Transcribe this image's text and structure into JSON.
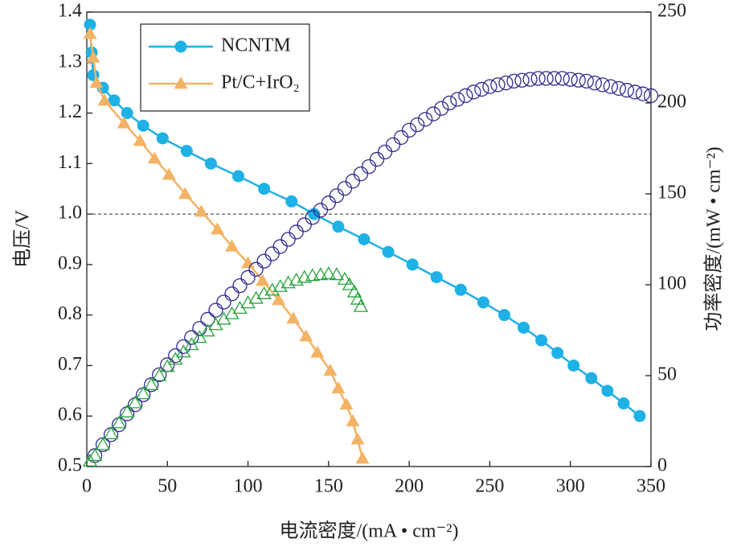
{
  "chart_data": {
    "type": "line",
    "xlabel": "电流密度/(mA • cm⁻²)",
    "ylabel": "电压/V",
    "y2label": "功率密度/(mW • cm⁻²)",
    "xlim": [
      0,
      350
    ],
    "xticks": [
      0,
      50,
      100,
      150,
      200,
      250,
      300,
      350
    ],
    "ylim": [
      0.5,
      1.4
    ],
    "yticks": [
      0.5,
      0.6,
      0.7,
      0.8,
      0.9,
      {
        "value": 1.0,
        "label": "1.0"
      },
      1.1,
      1.2,
      1.3,
      1.4
    ],
    "y2lim": [
      0,
      250
    ],
    "y2ticks": [
      0,
      50,
      100,
      150,
      200,
      250
    ],
    "hline": 1.0,
    "legend": "upper left",
    "series": [
      {
        "name": "NCNTM",
        "color": "#1eb1e6",
        "marker": "circle",
        "filled": true,
        "line": true,
        "x": [
          2,
          3,
          4,
          10,
          17,
          25,
          35,
          47,
          62,
          77,
          94,
          110,
          127,
          141,
          156,
          172,
          187,
          202,
          217,
          232,
          246,
          259,
          271,
          282,
          292,
          302,
          313,
          323,
          333,
          343
        ],
        "values": [
          1.375,
          1.32,
          1.275,
          1.25,
          1.225,
          1.2,
          1.175,
          1.15,
          1.125,
          1.1,
          1.075,
          1.05,
          1.025,
          1.0,
          0.975,
          0.95,
          0.925,
          0.9,
          0.875,
          0.85,
          0.825,
          0.8,
          0.775,
          0.75,
          0.725,
          0.7,
          0.675,
          0.65,
          0.625,
          0.6
        ]
      },
      {
        "name": "Pt/C+IrO₂",
        "color": "#f4b265",
        "marker": "triangle",
        "filled": true,
        "line": true,
        "x": [
          2,
          4,
          6,
          11,
          23,
          33,
          42,
          51,
          61,
          71,
          81,
          90,
          100,
          109,
          119,
          128,
          136,
          143,
          151,
          156,
          161,
          165,
          168,
          171
        ],
        "values": [
          1.357,
          1.31,
          1.26,
          1.225,
          1.18,
          1.145,
          1.11,
          1.078,
          1.04,
          1.005,
          0.97,
          0.936,
          0.903,
          0.868,
          0.83,
          0.793,
          0.758,
          0.726,
          0.69,
          0.655,
          0.623,
          0.59,
          0.554,
          0.516
        ]
      },
      {
        "color": "#2f2a8e",
        "marker": "circle",
        "filled": false,
        "line": false,
        "axis": "y2",
        "x": [
          5,
          10,
          15,
          20,
          25,
          30,
          35,
          40,
          45,
          50,
          55,
          60,
          65,
          70,
          75,
          80,
          85,
          90,
          95,
          100,
          105,
          110,
          115,
          120,
          125,
          130,
          135,
          140,
          145,
          150,
          155,
          160,
          165,
          170,
          175,
          180,
          185,
          190,
          195,
          200,
          205,
          210,
          215,
          220,
          225,
          230,
          235,
          240,
          245,
          250,
          255,
          260,
          265,
          270,
          275,
          280,
          285,
          290,
          295,
          300,
          305,
          310,
          315,
          320,
          325,
          330,
          335,
          340,
          345,
          350
        ],
        "values": [
          6,
          12,
          17.5,
          23,
          29,
          34,
          39.5,
          45,
          50.5,
          56,
          61,
          66,
          71,
          76,
          81,
          86,
          90.5,
          95,
          99.5,
          104,
          108.5,
          113,
          117,
          121,
          125,
          129,
          133,
          137,
          141,
          145,
          149,
          153,
          157,
          161,
          165,
          169,
          173,
          177,
          181,
          185,
          188,
          191,
          194,
          197,
          200,
          202,
          204,
          206,
          207.5,
          209,
          210,
          211,
          212,
          212.5,
          213,
          213.5,
          213.5,
          213.5,
          213.5,
          213,
          212.5,
          212,
          211,
          210,
          209,
          208,
          207,
          206,
          205,
          204
        ]
      },
      {
        "color": "#26a33c",
        "marker": "triangle",
        "filled": false,
        "line": false,
        "axis": "y2",
        "x": [
          2,
          5,
          10,
          15,
          20,
          25,
          30,
          35,
          40,
          45,
          50,
          55,
          60,
          65,
          70,
          75,
          80,
          85,
          90,
          95,
          100,
          105,
          110,
          115,
          120,
          125,
          130,
          135,
          140,
          145,
          150,
          155,
          160,
          163,
          166,
          168,
          170
        ],
        "values": [
          3,
          6,
          12,
          18,
          24,
          30,
          35,
          40,
          45,
          50,
          55,
          59,
          63,
          67,
          71,
          74.5,
          78,
          81,
          84,
          87,
          90,
          92.5,
          95,
          97,
          99,
          101,
          102.5,
          104,
          105,
          105.5,
          106,
          105.5,
          103,
          100,
          96,
          92,
          88
        ]
      }
    ]
  }
}
